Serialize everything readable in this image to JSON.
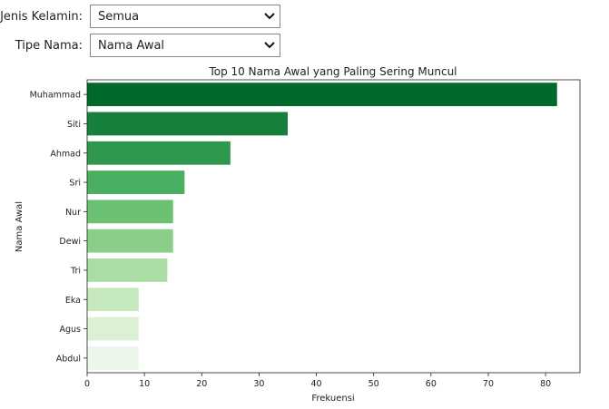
{
  "controls": {
    "gender": {
      "label": "Jenis Kelamin:",
      "value": "Semua"
    },
    "name_type": {
      "label": "Tipe Nama:",
      "value": "Nama Awal"
    }
  },
  "chart_data": {
    "type": "bar",
    "orientation": "horizontal",
    "title": "Top 10 Nama Awal yang Paling Sering Muncul",
    "xlabel": "Frekuensi",
    "ylabel": "Nama Awal",
    "categories": [
      "Muhammad",
      "Siti",
      "Ahmad",
      "Sri",
      "Nur",
      "Dewi",
      "Tri",
      "Eka",
      "Agus",
      "Abdul"
    ],
    "values": [
      82,
      35,
      25,
      17,
      15,
      15,
      14,
      9,
      9,
      9
    ],
    "xlim": [
      0,
      86
    ],
    "xticks": [
      0,
      10,
      20,
      30,
      40,
      50,
      60,
      70,
      80
    ],
    "grid": false,
    "colors": [
      "#00682a",
      "#157f3b",
      "#2f974e",
      "#4aaf61",
      "#6bc072",
      "#8ace88",
      "#aadda4",
      "#c6e8bf",
      "#dbf1d6",
      "#ebf7e8"
    ]
  }
}
